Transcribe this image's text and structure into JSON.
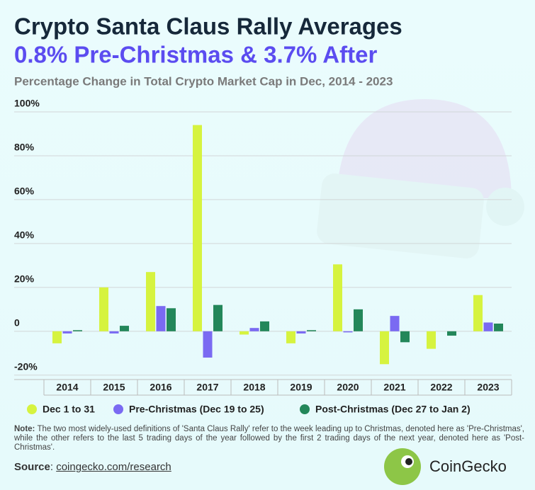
{
  "chart_data": {
    "type": "bar",
    "title": "Crypto Santa Claus Rally Averages",
    "subtitle": "0.8% Pre-Christmas & 3.7% After",
    "description": "Percentage Change in Total Crypto Market Cap in Dec, 2014 - 2023",
    "categories": [
      "2014",
      "2015",
      "2016",
      "2017",
      "2018",
      "2019",
      "2020",
      "2021",
      "2022",
      "2023"
    ],
    "series": [
      {
        "name": "Dec 1 to 31",
        "color": "#d6f33f",
        "values": [
          -5.5,
          20,
          27,
          94,
          -1.5,
          -5.5,
          30.5,
          -15,
          -8,
          16.5
        ]
      },
      {
        "name": "Pre-Christmas (Dec 19 to 25)",
        "color": "#7a6af2",
        "values": [
          -1,
          -1,
          11.5,
          -12,
          1.5,
          -1,
          -0.5,
          7,
          0,
          4
        ]
      },
      {
        "name": "Post-Christmas (Dec 27 to Jan 2)",
        "color": "#23875a",
        "values": [
          0.5,
          2.5,
          10.5,
          12,
          4.5,
          0.5,
          10,
          -5,
          -2,
          3.5
        ]
      }
    ],
    "ylim": [
      -22,
      100
    ],
    "yticks": [
      {
        "value": -20,
        "label": "-20%"
      },
      {
        "value": 0,
        "label": "0"
      },
      {
        "value": 20,
        "label": "20%"
      },
      {
        "value": 40,
        "label": "40%"
      },
      {
        "value": 60,
        "label": "60%"
      },
      {
        "value": 80,
        "label": "80%"
      },
      {
        "value": 100,
        "label": "100%"
      }
    ],
    "grid": true,
    "note_label": "Note:",
    "note": "The two most widely-used definitions of 'Santa Claus Rally' refer to the week leading up to Christmas, denoted here as 'Pre-Christmas', while the other refers to the last 5 trading days of the year followed by the first 2 trading days of the next year, denoted here as 'Post-Christmas'.",
    "source_label": "Source",
    "source": "coingecko.com/research",
    "brand": "CoinGecko"
  }
}
